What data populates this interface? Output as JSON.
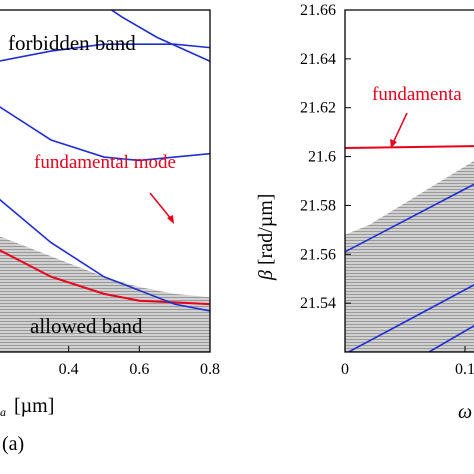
{
  "chart_data": [
    {
      "panel_label": "(a)",
      "type": "line",
      "xlabel_visible": "a [µm]",
      "xlabel_symbol": "…a",
      "x_ticks": [
        "0.4",
        "0.6",
        "0.8"
      ],
      "xlim": [
        0.2,
        0.8
      ],
      "region_labels": {
        "top": "forbidden band",
        "bottom": "allowed band"
      },
      "annotation": "fundamental mode",
      "colors": {
        "fundamental": "#e8001c",
        "modes": "#1f2fd0",
        "band": "#c7c7c7"
      },
      "band_edge": {
        "x": [
          0.2,
          0.4,
          0.5,
          0.6,
          0.7,
          0.8
        ],
        "y": [
          0.66,
          0.74,
          0.78,
          0.81,
          0.83,
          0.84
        ]
      },
      "series": [
        {
          "name": "fundamental mode",
          "x": [
            0.2,
            0.35,
            0.5,
            0.6,
            0.7,
            0.8
          ],
          "y": [
            0.7,
            0.78,
            0.83,
            0.85,
            0.855,
            0.86
          ]
        },
        {
          "x": [
            0.2,
            0.35,
            0.5,
            0.6,
            0.7,
            0.8
          ],
          "y": [
            0.55,
            0.68,
            0.78,
            0.82,
            0.86,
            0.88
          ]
        },
        {
          "x": [
            0.2,
            0.35,
            0.5,
            0.6,
            0.7,
            0.8
          ],
          "y": [
            0.28,
            0.38,
            0.43,
            0.44,
            0.43,
            0.42
          ]
        },
        {
          "x": [
            0.2,
            0.35,
            0.5,
            0.6,
            0.7,
            0.8
          ],
          "y": [
            0.15,
            0.12,
            0.1,
            0.1,
            0.1,
            0.11
          ]
        },
        {
          "x": [
            0.45,
            0.55,
            0.65,
            0.8
          ],
          "y": [
            -0.05,
            0.02,
            0.08,
            0.15
          ]
        }
      ]
    },
    {
      "type": "line",
      "ylabel": "β [rad/µm]",
      "x_ticks": [
        "0",
        "0.1"
      ],
      "xlim": [
        0,
        0.14
      ],
      "ylim": [
        21.52,
        21.66
      ],
      "y_ticks": [
        "21.54",
        "21.56",
        "21.58",
        "21.6",
        "21.62",
        "21.64",
        "21.66"
      ],
      "annotation": "fundamenta",
      "band_edge": {
        "x": [
          0,
          0.02,
          0.05,
          0.08,
          0.11,
          0.14
        ],
        "y": [
          21.568,
          21.572,
          21.581,
          21.59,
          21.599,
          21.608
        ]
      },
      "series": [
        {
          "name": "fundamental mode",
          "x": [
            0,
            0.14
          ],
          "y": [
            21.6035,
            21.6045
          ]
        },
        {
          "x": [
            0,
            0.14
          ],
          "y": [
            21.561,
            21.597
          ]
        },
        {
          "x": [
            0.003,
            0.14
          ],
          "y": [
            21.52,
            21.556
          ]
        },
        {
          "x": [
            0.07,
            0.14
          ],
          "y": [
            21.52,
            21.54
          ]
        }
      ]
    }
  ],
  "labels": {
    "panel": "(a)",
    "left_x_unit": "[µm]",
    "left_x_symbol": "a",
    "right_x_symbol": "ω"
  }
}
